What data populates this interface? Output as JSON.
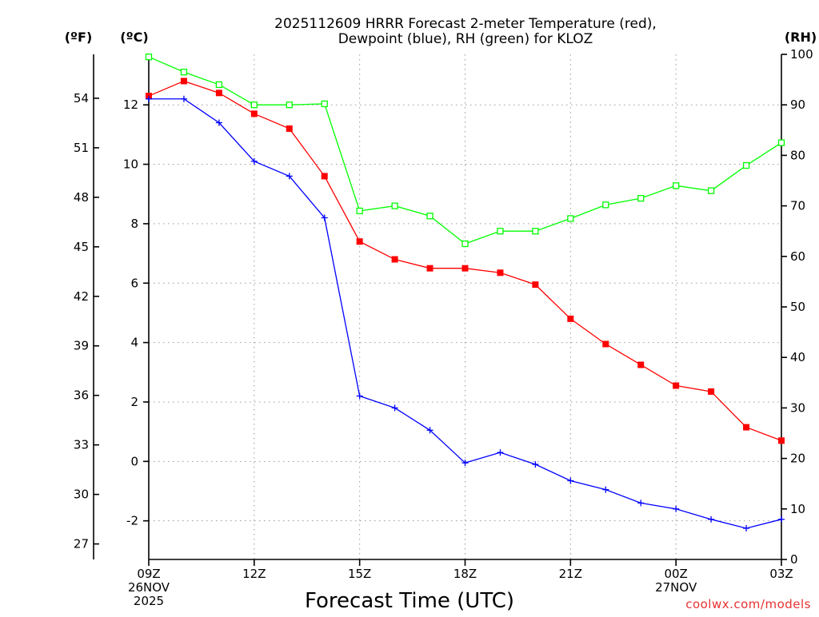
{
  "chart_data": {
    "type": "line",
    "title": [
      "2025112609 HRRR Forecast 2-meter Temperature (red),",
      "Dewpoint (blue), RH (green) for KLOZ"
    ],
    "xlabel": "Forecast Time (UTC)",
    "x": [
      9,
      10,
      11,
      12,
      13,
      14,
      15,
      16,
      17,
      18,
      19,
      20,
      21,
      22,
      23,
      24,
      25,
      26,
      27
    ],
    "x_ticks": [
      {
        "label": [
          "09Z",
          "26NOV",
          "2025"
        ]
      },
      {
        "label": [
          "12Z"
        ]
      },
      {
        "label": [
          "15Z"
        ]
      },
      {
        "label": [
          "18Z"
        ]
      },
      {
        "label": [
          "21Z"
        ]
      },
      {
        "label": [
          "00Z",
          "27NOV"
        ]
      },
      {
        "label": [
          "03Z"
        ]
      }
    ],
    "x_tick_values": [
      9,
      12,
      15,
      18,
      21,
      24,
      27
    ],
    "xlim": [
      9,
      27
    ],
    "y_left_unit": "(ºC)",
    "y_left_ticks": [
      "-2",
      "0",
      "2",
      "4",
      "6",
      "8",
      "10",
      "12"
    ],
    "y_left_tick_values": [
      -2,
      0,
      2,
      4,
      6,
      8,
      10,
      12
    ],
    "ylim_c": [
      -3.3,
      13.7
    ],
    "y_far_left_unit": "(ºF)",
    "y_f_ticks": [
      "27",
      "30",
      "33",
      "36",
      "39",
      "42",
      "45",
      "48",
      "51",
      "54"
    ],
    "y_f_tick_values": [
      27,
      30,
      33,
      36,
      39,
      42,
      45,
      48,
      51,
      54
    ],
    "y_right_unit": "(RH)",
    "y_right_ticks": [
      "0",
      "10",
      "20",
      "30",
      "40",
      "50",
      "60",
      "70",
      "80",
      "90",
      "100"
    ],
    "y_right_tick_values": [
      0,
      10,
      20,
      30,
      40,
      50,
      60,
      70,
      80,
      90,
      100
    ],
    "ylim_rh": [
      0,
      100
    ],
    "series": [
      {
        "name": "Temperature",
        "unit": "C",
        "color": "#ff0000",
        "values": [
          12.3,
          12.8,
          12.4,
          11.7,
          11.2,
          9.6,
          7.4,
          6.8,
          6.5,
          6.5,
          6.35,
          5.95,
          4.8,
          3.95,
          3.25,
          2.55,
          2.35,
          1.15,
          0.7
        ]
      },
      {
        "name": "Dewpoint",
        "unit": "C",
        "color": "#0000ff",
        "values": [
          12.2,
          12.2,
          11.4,
          10.1,
          9.6,
          8.2,
          2.2,
          1.8,
          1.05,
          -0.05,
          0.3,
          -0.1,
          -0.65,
          -0.95,
          -1.4,
          -1.6,
          -1.95,
          -2.25,
          -1.95
        ]
      },
      {
        "name": "RH",
        "unit": "%",
        "color": "#00ff00",
        "values": [
          99.5,
          96.5,
          94,
          90,
          90,
          90.2,
          69,
          70,
          68,
          62.5,
          65,
          65,
          67.5,
          70.2,
          71.5,
          74,
          73,
          78,
          82.5
        ]
      }
    ]
  },
  "credit": "coolwx.com/models"
}
